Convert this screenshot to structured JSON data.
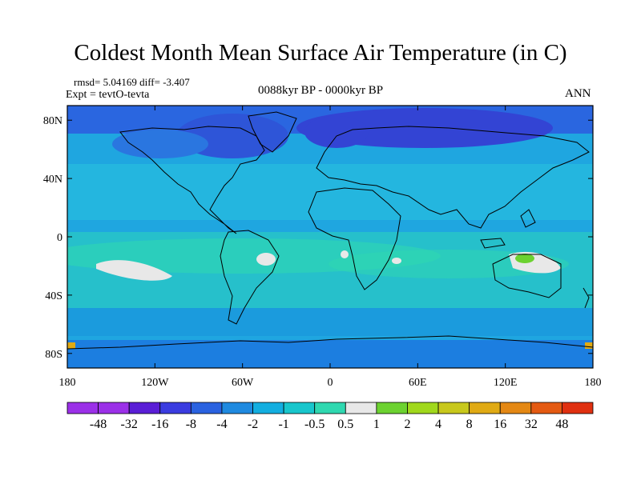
{
  "title": "Coldest Month Mean Surface Air Temperature (in C)",
  "stats": "rmsd= 5.04169 diff= -3.407",
  "experiment": "Expt = tevtO-tevta",
  "period": "0088kyr BP - 0000kyr BP",
  "season": "ANN",
  "map": {
    "x_ticks": [
      "180",
      "120W",
      "60W",
      "0",
      "60E",
      "120E",
      "180"
    ],
    "y_ticks": [
      "80N",
      "40N",
      "0",
      "40S",
      "80S"
    ],
    "lon_range": [
      -180,
      180
    ],
    "lat_range": [
      -90,
      90
    ]
  },
  "colorbar": {
    "labels": [
      "-48",
      "-32",
      "-16",
      "-8",
      "-4",
      "-2",
      "-1",
      "-0.5",
      "0.5",
      "1",
      "2",
      "4",
      "8",
      "16",
      "32",
      "48"
    ],
    "colors": [
      "#9b30e8",
      "#5a1ed6",
      "#3a3ce0",
      "#2a62e0",
      "#1f8ae0",
      "#13aee0",
      "#18c6cc",
      "#2fd8b0",
      "#e8e8e8",
      "#6cd230",
      "#a0d81c",
      "#c8c81c",
      "#e0aa14",
      "#e48814",
      "#e45a12",
      "#e03010"
    ]
  }
}
